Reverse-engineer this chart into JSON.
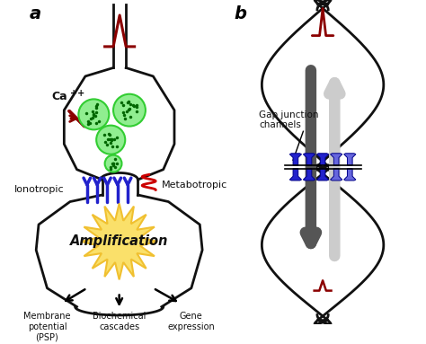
{
  "bg_color": "#ffffff",
  "label_a": "a",
  "label_b": "b",
  "neuron_color": "#111111",
  "dark_red": "#8B0000",
  "green_light": "#90ee90",
  "green_mid": "#32cd32",
  "green_dots": "#006600",
  "blue_receptor": "#2222cc",
  "blue_light": "#6666dd",
  "red_receptor": "#cc0000",
  "gold_outer": "#f0c030",
  "gold_inner": "#fae06a",
  "gray_dark": "#555555",
  "gray_light": "#cccccc",
  "text_color": "#111111",
  "ca_label": "Ca",
  "ca_super": "++",
  "ionotropic_label": "Ionotropic",
  "metabotropic_label": "Metabotropic",
  "amplification_label": "Amplification",
  "membrane_label": "Membrane\npotential\n(PSP)",
  "biochem_label": "Biochemical\ncascades",
  "gene_label": "Gene\nexpression",
  "gap_label": "Gap junction\nchannels"
}
